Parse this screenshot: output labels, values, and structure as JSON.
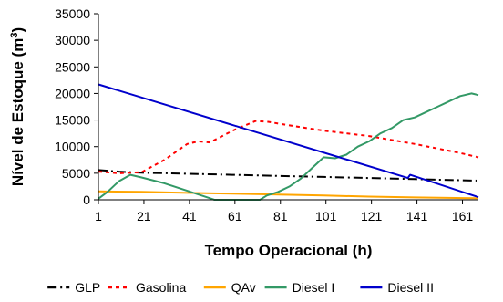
{
  "chart_data": {
    "type": "line",
    "xlabel": "Tempo Operacional (h)",
    "ylabel_main": "Nível de Estoque (m",
    "ylabel_sup": "3",
    "ylabel_close": ")",
    "xlim": [
      1,
      168
    ],
    "ylim": [
      0,
      35000
    ],
    "x_ticks": [
      "1",
      "21",
      "41",
      "61",
      "81",
      "101",
      "121",
      "141",
      "161"
    ],
    "y_ticks": [
      "0",
      "5000",
      "10000",
      "15000",
      "20000",
      "25000",
      "30000",
      "35000"
    ],
    "grid": false,
    "legend_position": "bottom",
    "series": [
      {
        "name": "GLP",
        "color": "#000000",
        "style": "dashdot",
        "x": [
          1,
          10,
          20,
          40,
          60,
          80,
          100,
          120,
          140,
          168
        ],
        "y": [
          5600,
          5300,
          5100,
          4900,
          4700,
          4500,
          4300,
          4100,
          3900,
          3600
        ]
      },
      {
        "name": "Gasolina",
        "color": "#ff0000",
        "style": "dotted",
        "x": [
          1,
          10,
          20,
          30,
          40,
          45,
          50,
          60,
          70,
          75,
          85,
          100,
          120,
          140,
          160,
          168
        ],
        "y": [
          5300,
          5000,
          5200,
          7500,
          10500,
          11000,
          10800,
          13000,
          14800,
          14700,
          14000,
          13000,
          12000,
          10500,
          8800,
          8000
        ]
      },
      {
        "name": "QAv",
        "color": "#ffa500",
        "style": "solid",
        "x": [
          1,
          20,
          40,
          60,
          80,
          100,
          120,
          140,
          168
        ],
        "y": [
          1600,
          1500,
          1300,
          1150,
          1000,
          800,
          600,
          450,
          300
        ]
      },
      {
        "name": "Diesel I",
        "color": "#339966",
        "style": "solid",
        "x": [
          1,
          5,
          10,
          15,
          20,
          30,
          40,
          50,
          52,
          72,
          75,
          80,
          85,
          90,
          95,
          100,
          105,
          110,
          115,
          120,
          125,
          130,
          135,
          140,
          145,
          150,
          155,
          160,
          165,
          168
        ],
        "y": [
          200,
          1500,
          3500,
          4700,
          4200,
          3100,
          1700,
          300,
          0,
          0,
          800,
          1500,
          2500,
          4000,
          6000,
          8000,
          7800,
          8500,
          10000,
          11000,
          12500,
          13500,
          15000,
          15500,
          16500,
          17500,
          18500,
          19500,
          20000,
          19700
        ]
      },
      {
        "name": "Diesel II",
        "color": "#0000cc",
        "style": "solid",
        "x": [
          1,
          137,
          138,
          168
        ],
        "y": [
          21700,
          4100,
          4700,
          500
        ]
      }
    ]
  }
}
